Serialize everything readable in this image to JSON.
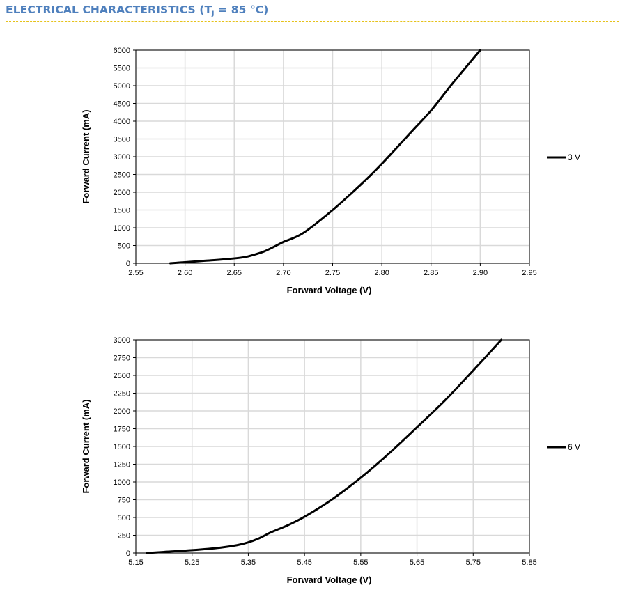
{
  "page": {
    "title_main": "ELECTRICAL CHARACTERISTICS (T",
    "title_sub": "J",
    "title_end": " = 85 °C)"
  },
  "chart_data": [
    {
      "type": "line",
      "xlabel": "Forward Voltage (V)",
      "ylabel": "Forward Current (mA)",
      "xlim": [
        2.55,
        2.95
      ],
      "ylim": [
        0,
        6000
      ],
      "x_ticks": [
        "2.55",
        "2.60",
        "2.65",
        "2.70",
        "2.75",
        "2.80",
        "2.85",
        "2.90",
        "2.95"
      ],
      "y_ticks": [
        "0",
        "500",
        "1000",
        "1500",
        "2000",
        "2500",
        "3000",
        "3500",
        "4000",
        "4500",
        "5000",
        "5500",
        "6000"
      ],
      "grid": true,
      "legend": "right",
      "series": [
        {
          "name": "3 V",
          "x": [
            2.585,
            2.6,
            2.62,
            2.64,
            2.66,
            2.67,
            2.68,
            2.69,
            2.7,
            2.72,
            2.75,
            2.78,
            2.8,
            2.83,
            2.85,
            2.87,
            2.9
          ],
          "y": [
            0,
            30,
            70,
            110,
            170,
            240,
            330,
            460,
            600,
            850,
            1500,
            2250,
            2800,
            3700,
            4300,
            5000,
            6000
          ]
        }
      ]
    },
    {
      "type": "line",
      "xlabel": "Forward Voltage (V)",
      "ylabel": "Forward Current (mA)",
      "xlim": [
        5.15,
        5.85
      ],
      "ylim": [
        0,
        3000
      ],
      "x_ticks": [
        "5.15",
        "5.25",
        "5.35",
        "5.45",
        "5.55",
        "5.65",
        "5.75",
        "5.85"
      ],
      "y_ticks": [
        "0",
        "250",
        "500",
        "750",
        "1000",
        "1250",
        "1500",
        "1750",
        "2000",
        "2250",
        "2500",
        "2750",
        "3000"
      ],
      "grid": true,
      "legend": "right",
      "series": [
        {
          "name": "6 V",
          "x": [
            5.17,
            5.2,
            5.25,
            5.3,
            5.33,
            5.35,
            5.37,
            5.39,
            5.42,
            5.45,
            5.5,
            5.55,
            5.6,
            5.65,
            5.7,
            5.75,
            5.8
          ],
          "y": [
            0,
            15,
            40,
            75,
            110,
            150,
            210,
            290,
            390,
            510,
            760,
            1060,
            1400,
            1770,
            2150,
            2570,
            3000
          ]
        }
      ]
    }
  ]
}
